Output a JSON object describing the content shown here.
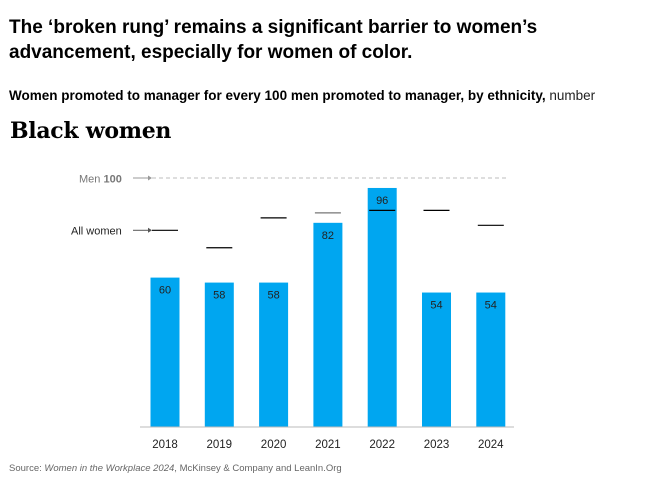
{
  "title": "The ‘broken rung’ remains a significant barrier to women’s advancement, especially for women of color.",
  "subtitle": {
    "main": "Women promoted to manager for every 100 men promoted to manager, by ethnicity,",
    "unit": "number"
  },
  "source": {
    "prefix": "Source: ",
    "publication": "Women in the Workplace 2024",
    "suffix": ", McKinsey & Company and LeanIn.Org"
  },
  "colors": {
    "bar": "#00a6f0",
    "all_women_marker": "#000000",
    "reference_line": "#bdbdbd",
    "label_text": "#222222"
  },
  "chart_data": {
    "type": "bar",
    "title": "Black women",
    "categories": [
      "2018",
      "2019",
      "2020",
      "2021",
      "2022",
      "2023",
      "2024"
    ],
    "series": [
      {
        "values": [
          60,
          58,
          58,
          82,
          96,
          54,
          54
        ]
      },
      {
        "name": "All women",
        "values": [
          79,
          72,
          84,
          86,
          87,
          87,
          81
        ]
      }
    ],
    "reference_line": {
      "prefix": "Men",
      "value": 100
    },
    "ylim": [
      0,
      100
    ],
    "grid": false,
    "legend": "inline-left"
  }
}
